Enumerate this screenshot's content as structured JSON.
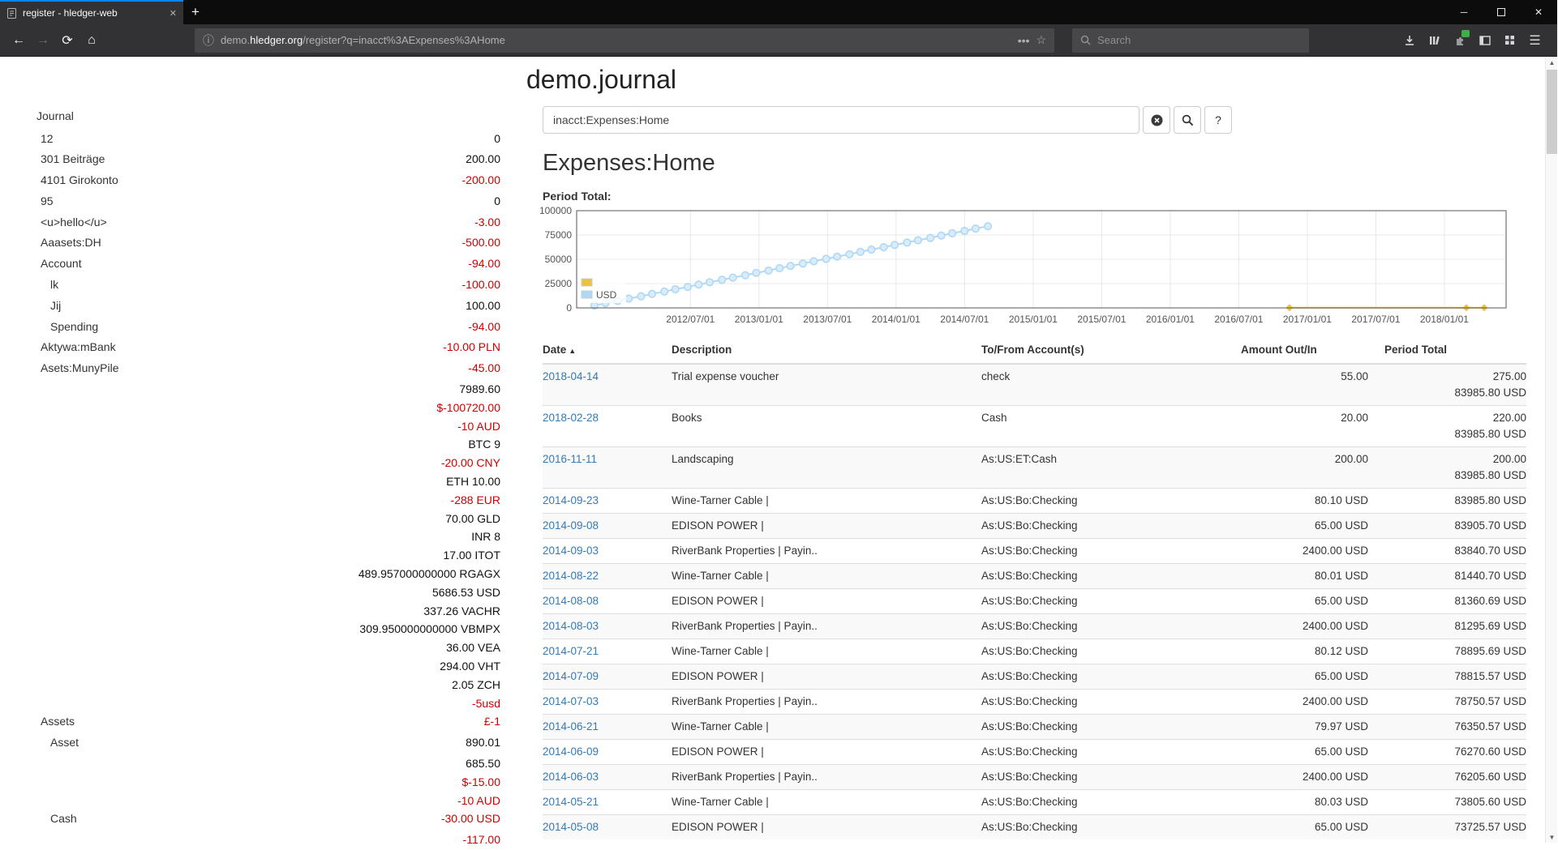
{
  "browser": {
    "tab_title": "register - hledger-web",
    "new_tab_label": "+",
    "url_parts": {
      "pre": "demo.",
      "domain": "hledger.org",
      "path": "/register?q=inacct%3AExpenses%3AHome"
    },
    "search_placeholder": "Search"
  },
  "page": {
    "title": "demo.journal",
    "query_value": "inacct:Expenses:Home",
    "heading": "Expenses:Home",
    "help_label": "?"
  },
  "colors": {
    "accent": "#0a84ff",
    "link": "#337ab7",
    "negative": "#cc0000",
    "series_yellow": "#edc240",
    "series_blue": "#afd8f8"
  },
  "sidebar": {
    "journal_label": "Journal",
    "accounts": [
      {
        "name": "12",
        "depth": 1,
        "amounts": [
          {
            "text": "0",
            "negative": false
          }
        ]
      },
      {
        "name": "301 Beiträge",
        "depth": 1,
        "amounts": [
          {
            "text": "200.00",
            "negative": false
          }
        ]
      },
      {
        "name": "4101 Girokonto",
        "depth": 1,
        "amounts": [
          {
            "text": "-200.00",
            "negative": true
          }
        ]
      },
      {
        "name": "95",
        "depth": 1,
        "amounts": [
          {
            "text": "0",
            "negative": false
          }
        ]
      },
      {
        "name": "<u>hello</u>",
        "depth": 1,
        "amounts": [
          {
            "text": "-3.00",
            "negative": true
          }
        ]
      },
      {
        "name": "Aaasets:DH",
        "depth": 1,
        "amounts": [
          {
            "text": "-500.00",
            "negative": true
          }
        ]
      },
      {
        "name": "Account",
        "depth": 1,
        "amounts": [
          {
            "text": "-94.00",
            "negative": true
          }
        ]
      },
      {
        "name": "lk",
        "depth": 2,
        "amounts": [
          {
            "text": "-100.00",
            "negative": true
          }
        ]
      },
      {
        "name": "Jij",
        "depth": 2,
        "amounts": [
          {
            "text": "100.00",
            "negative": false
          }
        ]
      },
      {
        "name": "Spending",
        "depth": 2,
        "amounts": [
          {
            "text": "-94.00",
            "negative": true
          }
        ]
      },
      {
        "name": "Aktywa:mBank",
        "depth": 1,
        "amounts": [
          {
            "text": "-10.00 PLN",
            "negative": true
          }
        ]
      },
      {
        "name": "Asets:MunyPile",
        "depth": 1,
        "amounts": [
          {
            "text": "-45.00",
            "negative": true
          }
        ]
      },
      {
        "name": "Assets",
        "depth": 1,
        "amounts": [
          {
            "text": "7989.60",
            "negative": false
          },
          {
            "text": "$-100720.00",
            "negative": true
          },
          {
            "text": "-10 AUD",
            "negative": true
          },
          {
            "text": "BTC 9",
            "negative": false
          },
          {
            "text": "-20.00 CNY",
            "negative": true
          },
          {
            "text": "ETH 10.00",
            "negative": false
          },
          {
            "text": "-288 EUR",
            "negative": true
          },
          {
            "text": "70.00 GLD",
            "negative": false
          },
          {
            "text": "INR 8",
            "negative": false
          },
          {
            "text": "17.00 ITOT",
            "negative": false
          },
          {
            "text": "489.957000000000 RGAGX",
            "negative": false
          },
          {
            "text": "5686.53 USD",
            "negative": false
          },
          {
            "text": "337.26 VACHR",
            "negative": false
          },
          {
            "text": "309.950000000000 VBMPX",
            "negative": false
          },
          {
            "text": "36.00 VEA",
            "negative": false
          },
          {
            "text": "294.00 VHT",
            "negative": false
          },
          {
            "text": "2.05 ZCH",
            "negative": false
          },
          {
            "text": "-5usd",
            "negative": true
          },
          {
            "text": "£-1",
            "negative": true
          }
        ]
      },
      {
        "name": "Asset",
        "depth": 2,
        "amounts": [
          {
            "text": "890.01",
            "negative": false
          }
        ]
      },
      {
        "name": "Cash",
        "depth": 2,
        "amounts": [
          {
            "text": "685.50",
            "negative": false
          },
          {
            "text": "$-15.00",
            "negative": true
          },
          {
            "text": "-10 AUD",
            "negative": true
          },
          {
            "text": "-30.00 USD",
            "negative": true
          }
        ]
      },
      {
        "name": "",
        "depth": 1,
        "amounts": [
          {
            "text": "-117.00",
            "negative": true
          }
        ]
      }
    ]
  },
  "chart_data": {
    "type": "scatter",
    "title": "Period Total:",
    "x_min": 2011.67,
    "x_max": 2018.45,
    "y_min": 0,
    "y_max": 100000,
    "y_ticks": [
      0,
      25000,
      50000,
      75000,
      100000
    ],
    "y_tick_labels": [
      "0",
      "25000",
      "50000",
      "75000",
      "100000"
    ],
    "x_ticks": [
      2012.5,
      2013.0,
      2013.5,
      2014.0,
      2014.5,
      2015.0,
      2015.5,
      2016.0,
      2016.5,
      2017.0,
      2017.5,
      2018.0
    ],
    "x_tick_labels": [
      "2012/07/01",
      "2013/01/01",
      "2013/07/01",
      "2014/01/01",
      "2014/07/01",
      "2015/01/01",
      "2015/07/01",
      "2016/01/01",
      "2016/07/01",
      "2017/01/01",
      "2017/07/01",
      "2018/01/01"
    ],
    "legend_position": "bottom-left",
    "series": [
      {
        "label": "",
        "color": "#edc240",
        "fill": "#f6e09a",
        "marker": "diamond",
        "points": [
          [
            2016.87,
            200
          ],
          [
            2018.16,
            220
          ],
          [
            2018.29,
            275
          ]
        ]
      },
      {
        "label": "USD",
        "color": "#afd8f8",
        "fill": "#d9ecfa",
        "marker": "circle",
        "points": [
          [
            2011.8,
            2400
          ],
          [
            2011.88,
            4799
          ],
          [
            2011.97,
            7199
          ],
          [
            2012.05,
            9598
          ],
          [
            2012.14,
            11998
          ],
          [
            2012.22,
            14398
          ],
          [
            2012.31,
            16797
          ],
          [
            2012.39,
            19197
          ],
          [
            2012.48,
            21596
          ],
          [
            2012.56,
            23996
          ],
          [
            2012.64,
            26396
          ],
          [
            2012.73,
            28795
          ],
          [
            2012.81,
            31195
          ],
          [
            2012.9,
            33594
          ],
          [
            2012.98,
            35994
          ],
          [
            2013.07,
            38394
          ],
          [
            2013.15,
            40793
          ],
          [
            2013.23,
            43193
          ],
          [
            2013.32,
            45592
          ],
          [
            2013.4,
            47992
          ],
          [
            2013.49,
            50391
          ],
          [
            2013.57,
            52791
          ],
          [
            2013.66,
            55191
          ],
          [
            2013.74,
            57590
          ],
          [
            2013.82,
            59990
          ],
          [
            2013.91,
            62389
          ],
          [
            2013.99,
            64789
          ],
          [
            2014.08,
            67189
          ],
          [
            2014.16,
            69588
          ],
          [
            2014.25,
            71988
          ],
          [
            2014.33,
            74387
          ],
          [
            2014.41,
            76787
          ],
          [
            2014.5,
            79187
          ],
          [
            2014.58,
            81586
          ],
          [
            2014.67,
            83986
          ]
        ]
      }
    ]
  },
  "register": {
    "columns": [
      "Date",
      "Description",
      "To/From Account(s)",
      "Amount Out/In",
      "Period Total"
    ],
    "rows": [
      {
        "date": "2018-04-14",
        "description": "Trial expense voucher",
        "account": "check",
        "amount": "55.00",
        "totals": [
          "275.00",
          "83985.80 USD"
        ]
      },
      {
        "date": "2018-02-28",
        "description": "Books",
        "account": "Cash",
        "amount": "20.00",
        "totals": [
          "220.00",
          "83985.80 USD"
        ]
      },
      {
        "date": "2016-11-11",
        "description": "Landscaping",
        "account": "As:US:ET:Cash",
        "amount": "200.00",
        "totals": [
          "200.00",
          "83985.80 USD"
        ]
      },
      {
        "date": "2014-09-23",
        "description": "Wine-Tarner Cable |",
        "account": "As:US:Bo:Checking",
        "amount": "80.10 USD",
        "totals": [
          "83985.80 USD"
        ]
      },
      {
        "date": "2014-09-08",
        "description": "EDISON POWER |",
        "account": "As:US:Bo:Checking",
        "amount": "65.00 USD",
        "totals": [
          "83905.70 USD"
        ]
      },
      {
        "date": "2014-09-03",
        "description": "RiverBank Properties | Payin..",
        "account": "As:US:Bo:Checking",
        "amount": "2400.00 USD",
        "totals": [
          "83840.70 USD"
        ]
      },
      {
        "date": "2014-08-22",
        "description": "Wine-Tarner Cable |",
        "account": "As:US:Bo:Checking",
        "amount": "80.01 USD",
        "totals": [
          "81440.70 USD"
        ]
      },
      {
        "date": "2014-08-08",
        "description": "EDISON POWER |",
        "account": "As:US:Bo:Checking",
        "amount": "65.00 USD",
        "totals": [
          "81360.69 USD"
        ]
      },
      {
        "date": "2014-08-03",
        "description": "RiverBank Properties | Payin..",
        "account": "As:US:Bo:Checking",
        "amount": "2400.00 USD",
        "totals": [
          "81295.69 USD"
        ]
      },
      {
        "date": "2014-07-21",
        "description": "Wine-Tarner Cable |",
        "account": "As:US:Bo:Checking",
        "amount": "80.12 USD",
        "totals": [
          "78895.69 USD"
        ]
      },
      {
        "date": "2014-07-09",
        "description": "EDISON POWER |",
        "account": "As:US:Bo:Checking",
        "amount": "65.00 USD",
        "totals": [
          "78815.57 USD"
        ]
      },
      {
        "date": "2014-07-03",
        "description": "RiverBank Properties | Payin..",
        "account": "As:US:Bo:Checking",
        "amount": "2400.00 USD",
        "totals": [
          "78750.57 USD"
        ]
      },
      {
        "date": "2014-06-21",
        "description": "Wine-Tarner Cable |",
        "account": "As:US:Bo:Checking",
        "amount": "79.97 USD",
        "totals": [
          "76350.57 USD"
        ]
      },
      {
        "date": "2014-06-09",
        "description": "EDISON POWER |",
        "account": "As:US:Bo:Checking",
        "amount": "65.00 USD",
        "totals": [
          "76270.60 USD"
        ]
      },
      {
        "date": "2014-06-03",
        "description": "RiverBank Properties | Payin..",
        "account": "As:US:Bo:Checking",
        "amount": "2400.00 USD",
        "totals": [
          "76205.60 USD"
        ]
      },
      {
        "date": "2014-05-21",
        "description": "Wine-Tarner Cable |",
        "account": "As:US:Bo:Checking",
        "amount": "80.03 USD",
        "totals": [
          "73805.60 USD"
        ]
      },
      {
        "date": "2014-05-08",
        "description": "EDISON POWER |",
        "account": "As:US:Bo:Checking",
        "amount": "65.00 USD",
        "totals": [
          "73725.57 USD"
        ]
      }
    ]
  }
}
